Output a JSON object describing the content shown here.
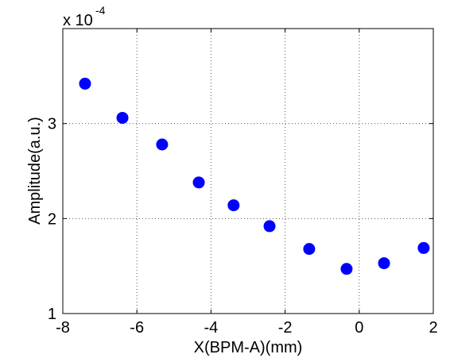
{
  "chart_data": {
    "type": "scatter",
    "xlabel": "X(BPM-A)(mm)",
    "ylabel": "Amplitude(a.u.)",
    "y_multiplier": {
      "base": "x 10",
      "power": "-4"
    },
    "series": [
      {
        "color": "#0000ff",
        "x": [
          -7.4,
          -6.39,
          -5.32,
          -4.33,
          -3.39,
          -2.42,
          -1.35,
          -0.34,
          0.67,
          1.74
        ],
        "values": [
          3.42,
          3.06,
          2.78,
          2.38,
          2.14,
          1.92,
          1.68,
          1.47,
          1.53,
          1.69
        ]
      }
    ],
    "xlim": [
      -8,
      2
    ],
    "xticks": [
      -8,
      -6,
      -4,
      -2,
      0,
      2
    ],
    "ylim": [
      1,
      4
    ],
    "yticks": [
      1,
      2,
      3
    ],
    "grid": true
  }
}
